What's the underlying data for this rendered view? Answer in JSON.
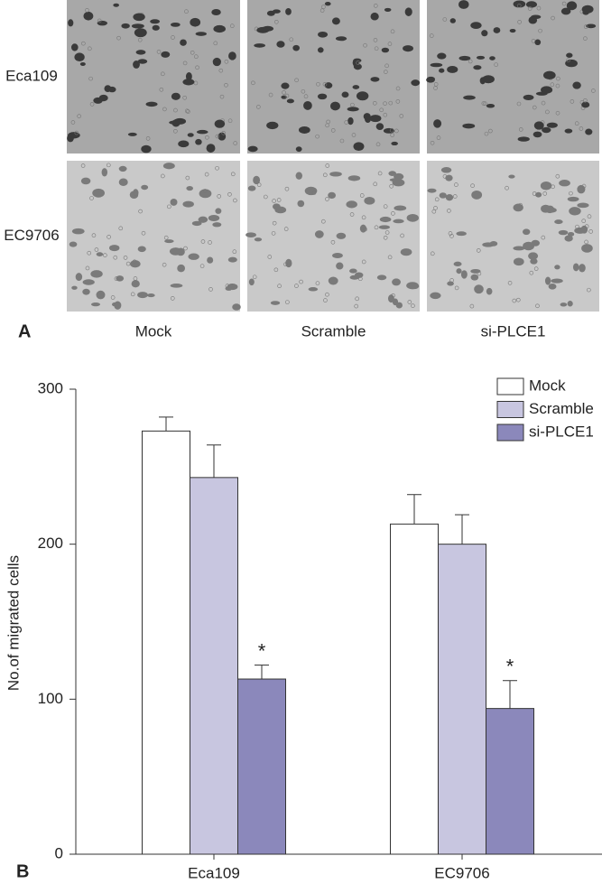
{
  "panel_a": {
    "label": "A",
    "rows": [
      "Eca109",
      "EC9706"
    ],
    "columns": [
      "Mock",
      "Scramble",
      "si-PLCE1"
    ]
  },
  "panel_b": {
    "label": "B"
  },
  "chart_data": {
    "type": "bar",
    "y_label": "No.of migrated cells",
    "categories": [
      "Eca109",
      "EC9706"
    ],
    "series": [
      {
        "name": "Mock",
        "color": "#ffffff",
        "values": [
          273,
          213
        ],
        "errors": [
          9,
          19
        ]
      },
      {
        "name": "Scramble",
        "color": "#c8c6e0",
        "values": [
          243,
          200
        ],
        "errors": [
          21,
          19
        ]
      },
      {
        "name": "si-PLCE1",
        "color": "#8b88bb",
        "values": [
          113,
          94
        ],
        "errors": [
          9,
          18
        ],
        "significance": [
          "*",
          "*"
        ]
      }
    ],
    "ylim": [
      0,
      300
    ],
    "yticks": [
      0,
      100,
      200,
      300
    ],
    "legend": "top-right"
  }
}
